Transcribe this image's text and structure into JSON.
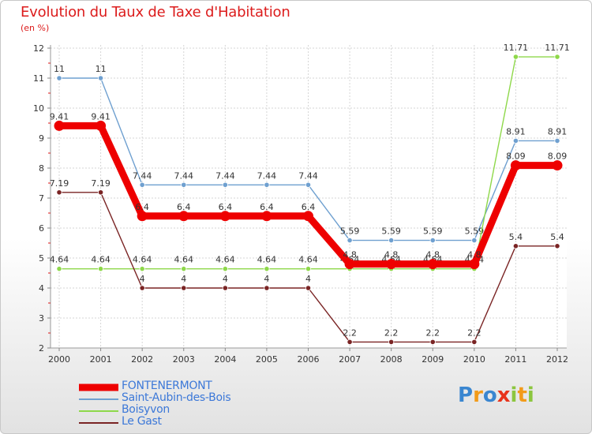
{
  "title": "Evolution du Taux de Taxe d'Habitation",
  "subtitle": "(en %)",
  "chart_data": {
    "type": "line",
    "x": [
      "2000",
      "2001",
      "2002",
      "2003",
      "2004",
      "2005",
      "2006",
      "2007",
      "2008",
      "2009",
      "2010",
      "2011",
      "2012"
    ],
    "ylim": [
      2,
      12
    ],
    "yticks": [
      2,
      3,
      4,
      5,
      6,
      7,
      8,
      9,
      10,
      11,
      12
    ],
    "series": [
      {
        "name": "Saint-Aubin-des-Bois",
        "color": "#6fa0d0",
        "values": [
          11,
          11,
          7.44,
          7.44,
          7.44,
          7.44,
          7.44,
          5.59,
          5.59,
          5.59,
          5.59,
          8.91,
          8.91
        ],
        "labels": [
          "11",
          "11",
          "7.44",
          "7.44",
          "7.44",
          "7.44",
          "7.44",
          "5.59",
          "5.59",
          "5.59",
          "5.59",
          "8.91",
          "8.91"
        ]
      },
      {
        "name": "Boisyvon",
        "color": "#8ed84a",
        "values": [
          4.64,
          4.64,
          4.64,
          4.64,
          4.64,
          4.64,
          4.64,
          4.64,
          4.64,
          4.64,
          4.64,
          11.71,
          11.71
        ],
        "labels": [
          "4.64",
          "4.64",
          "4.64",
          "4.64",
          "4.64",
          "4.64",
          "4.64",
          "4.64",
          "4.64",
          "4.64",
          "4.64",
          "11.71",
          "11.71"
        ]
      },
      {
        "name": "Le Gast",
        "color": "#7a2424",
        "values": [
          7.19,
          7.19,
          4,
          4,
          4,
          4,
          4,
          2.2,
          2.2,
          2.2,
          2.2,
          5.4,
          5.4
        ],
        "labels": [
          "7.19",
          "7.19",
          "4",
          "4",
          "4",
          "4",
          "4",
          "2.2",
          "2.2",
          "2.2",
          "2.2",
          "5.4",
          "5.4"
        ]
      },
      {
        "name": "FONTENERMONT",
        "color": "#ee0000",
        "values": [
          9.41,
          9.41,
          6.4,
          6.4,
          6.4,
          6.4,
          6.4,
          4.8,
          4.8,
          4.8,
          4.8,
          8.09,
          8.09
        ],
        "labels": [
          "9.41",
          "9.41",
          "6.4",
          "6.4",
          "6.4",
          "6.4",
          "6.4",
          "4.8",
          "4.8",
          "4.8",
          "4.8",
          "8.09",
          "8.09"
        ]
      }
    ]
  },
  "legend": [
    {
      "name": "FONTENERMONT",
      "color": "#ee0000"
    },
    {
      "name": "Saint-Aubin-des-Bois",
      "color": "#6fa0d0"
    },
    {
      "name": "Boisyvon",
      "color": "#8ed84a"
    },
    {
      "name": "Le Gast",
      "color": "#7a2424"
    }
  ],
  "logo": {
    "letters": [
      "P",
      "r",
      "o",
      "x",
      "i",
      "t",
      "i"
    ],
    "colors": [
      "#3a86d0",
      "#f29b1a",
      "#3a86d0",
      "#e8331b",
      "#8cc63f",
      "#f29b1a",
      "#8cc63f"
    ]
  }
}
